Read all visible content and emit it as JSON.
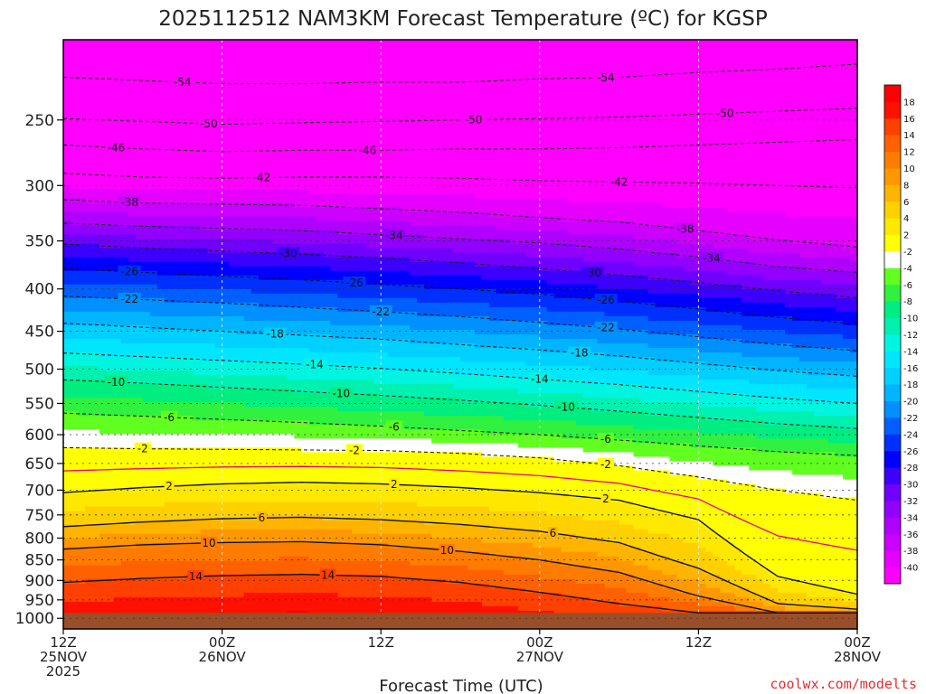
{
  "chart_data": {
    "type": "heatmap",
    "title": "2025112512 NAM3KM Forecast Temperature (ºC) for KGSP",
    "xlabel": "Forecast Time (UTC)",
    "ylabel": "",
    "y_scale": "log",
    "y_inverted": true,
    "ylim": [
      1030,
      200
    ],
    "y_ticks": [
      250,
      300,
      350,
      400,
      450,
      500,
      550,
      600,
      650,
      700,
      750,
      800,
      850,
      900,
      950,
      1000
    ],
    "x_ticks": [
      {
        "hour": 0,
        "line1": "12Z",
        "line2": "25NOV",
        "line3": "2025"
      },
      {
        "hour": 12,
        "line1": "00Z",
        "line2": "26NOV",
        "line3": ""
      },
      {
        "hour": 24,
        "line1": "12Z",
        "line2": "",
        "line3": ""
      },
      {
        "hour": 36,
        "line1": "00Z",
        "line2": "27NOV",
        "line3": ""
      },
      {
        "hour": 48,
        "line1": "12Z",
        "line2": "",
        "line3": ""
      },
      {
        "hour": 60,
        "line1": "00Z",
        "line2": "28NOV",
        "line3": ""
      }
    ],
    "xlim": [
      0,
      60
    ],
    "grid": true,
    "ground_pressure": 985,
    "freezing_line_label": "",
    "contour_profile_hours": [
      0,
      6,
      12,
      18,
      24,
      30,
      36,
      42,
      48,
      54,
      60
    ],
    "contours": [
      {
        "level": -54,
        "p": [
          222,
          224,
          226,
          226,
          225,
          225,
          223,
          222,
          219,
          217,
          214
        ],
        "labels": [
          {
            "hour": 9
          },
          {
            "hour": 41
          }
        ]
      },
      {
        "level": -50,
        "p": [
          249,
          251,
          253,
          252,
          251,
          250,
          249,
          248,
          246,
          244,
          242
        ],
        "labels": [
          {
            "hour": 11
          },
          {
            "hour": 31
          },
          {
            "hour": 50
          }
        ]
      },
      {
        "level": -46,
        "p": [
          268,
          271,
          273,
          272,
          272,
          271,
          271,
          270,
          268,
          266,
          264
        ],
        "labels": [
          {
            "hour": 4
          },
          {
            "hour": 23
          }
        ]
      },
      {
        "level": -42,
        "p": [
          290,
          293,
          294,
          293,
          293,
          294,
          296,
          297,
          298,
          300,
          302
        ],
        "labels": [
          {
            "hour": 15
          },
          {
            "hour": 42
          }
        ]
      },
      {
        "level": -38,
        "p": [
          312,
          315,
          316,
          317,
          320,
          323,
          328,
          332,
          340,
          349,
          356
        ],
        "labels": [
          {
            "hour": 5
          },
          {
            "hour": 47
          }
        ]
      },
      {
        "level": -34,
        "p": [
          333,
          336,
          338,
          340,
          344,
          348,
          352,
          358,
          366,
          376,
          382
        ],
        "labels": [
          {
            "hour": 25
          },
          {
            "hour": 49
          }
        ]
      },
      {
        "level": -30,
        "p": [
          353,
          357,
          360,
          363,
          367,
          372,
          378,
          385,
          393,
          402,
          410
        ],
        "labels": [
          {
            "hour": 17
          },
          {
            "hour": 40
          }
        ]
      },
      {
        "level": -26,
        "p": [
          378,
          382,
          386,
          390,
          395,
          400,
          406,
          414,
          423,
          433,
          441
        ],
        "labels": [
          {
            "hour": 5
          },
          {
            "hour": 22
          },
          {
            "hour": 41
          }
        ]
      },
      {
        "level": -22,
        "p": [
          408,
          412,
          416,
          421,
          426,
          432,
          439,
          447,
          457,
          467,
          475
        ],
        "labels": [
          {
            "hour": 5
          },
          {
            "hour": 24
          },
          {
            "hour": 41
          }
        ]
      },
      {
        "level": -18,
        "p": [
          440,
          445,
          450,
          455,
          460,
          467,
          474,
          482,
          492,
          502,
          510
        ],
        "labels": [
          {
            "hour": 16
          },
          {
            "hour": 39
          }
        ]
      },
      {
        "level": -14,
        "p": [
          478,
          483,
          488,
          493,
          499,
          506,
          514,
          522,
          532,
          542,
          550
        ],
        "labels": [
          {
            "hour": 19
          },
          {
            "hour": 36
          }
        ]
      },
      {
        "level": -10,
        "p": [
          515,
          520,
          526,
          532,
          538,
          545,
          553,
          562,
          572,
          582,
          590
        ],
        "labels": [
          {
            "hour": 4
          },
          {
            "hour": 21
          },
          {
            "hour": 38
          }
        ]
      },
      {
        "level": -6,
        "p": [
          565,
          570,
          575,
          580,
          586,
          593,
          600,
          609,
          619,
          629,
          636
        ],
        "labels": [
          {
            "hour": 8
          },
          {
            "hour": 25
          },
          {
            "hour": 41
          }
        ]
      },
      {
        "level": -2,
        "p": [
          622,
          624,
          625,
          626,
          627,
          632,
          640,
          654,
          675,
          700,
          720
        ],
        "labels": [
          {
            "hour": 6
          },
          {
            "hour": 22
          },
          {
            "hour": 41
          }
        ]
      },
      {
        "level": 2,
        "p": [
          705,
          695,
          688,
          685,
          688,
          695,
          705,
          720,
          760,
          890,
          935
        ],
        "labels": [
          {
            "hour": 8
          },
          {
            "hour": 25
          },
          {
            "hour": 41
          }
        ]
      },
      {
        "level": 6,
        "p": [
          775,
          765,
          758,
          755,
          760,
          770,
          785,
          810,
          870,
          960,
          975
        ],
        "labels": [
          {
            "hour": 15
          },
          {
            "hour": 37
          }
        ]
      },
      {
        "level": 10,
        "p": [
          825,
          815,
          810,
          808,
          815,
          830,
          850,
          880,
          940,
          985,
          985
        ],
        "labels": [
          {
            "hour": 11
          },
          {
            "hour": 29
          }
        ]
      },
      {
        "level": 14,
        "p": [
          905,
          895,
          888,
          885,
          890,
          905,
          930,
          960,
          985,
          985,
          985
        ],
        "labels": [
          {
            "hour": 10
          },
          {
            "hour": 20
          }
        ]
      }
    ],
    "color_scale": {
      "breaks": [
        -40,
        -38,
        -36,
        -34,
        -32,
        -30,
        -28,
        -26,
        -24,
        -22,
        -20,
        -18,
        -16,
        -14,
        -12,
        -10,
        -8,
        -6,
        -4,
        -2,
        2,
        4,
        6,
        8,
        10,
        12,
        14,
        16,
        18
      ],
      "colors": [
        "#ff00ff",
        "#e600ff",
        "#cc00ff",
        "#b000ff",
        "#9200ff",
        "#7000ff",
        "#3c00ff",
        "#0000ff",
        "#0030ff",
        "#0060ff",
        "#0090ff",
        "#00b4ff",
        "#00d0ff",
        "#00e6ff",
        "#00f5e0",
        "#00f0b0",
        "#00ee80",
        "#30f040",
        "#60ff20",
        "#ffffff",
        "#ffff00",
        "#ffe800",
        "#ffd000",
        "#ffb400",
        "#ff9800",
        "#ff7c00",
        "#ff6000",
        "#ff4000",
        "#ff1000",
        "#ff0000"
      ]
    }
  },
  "credit": "coolwx.com/modelts"
}
